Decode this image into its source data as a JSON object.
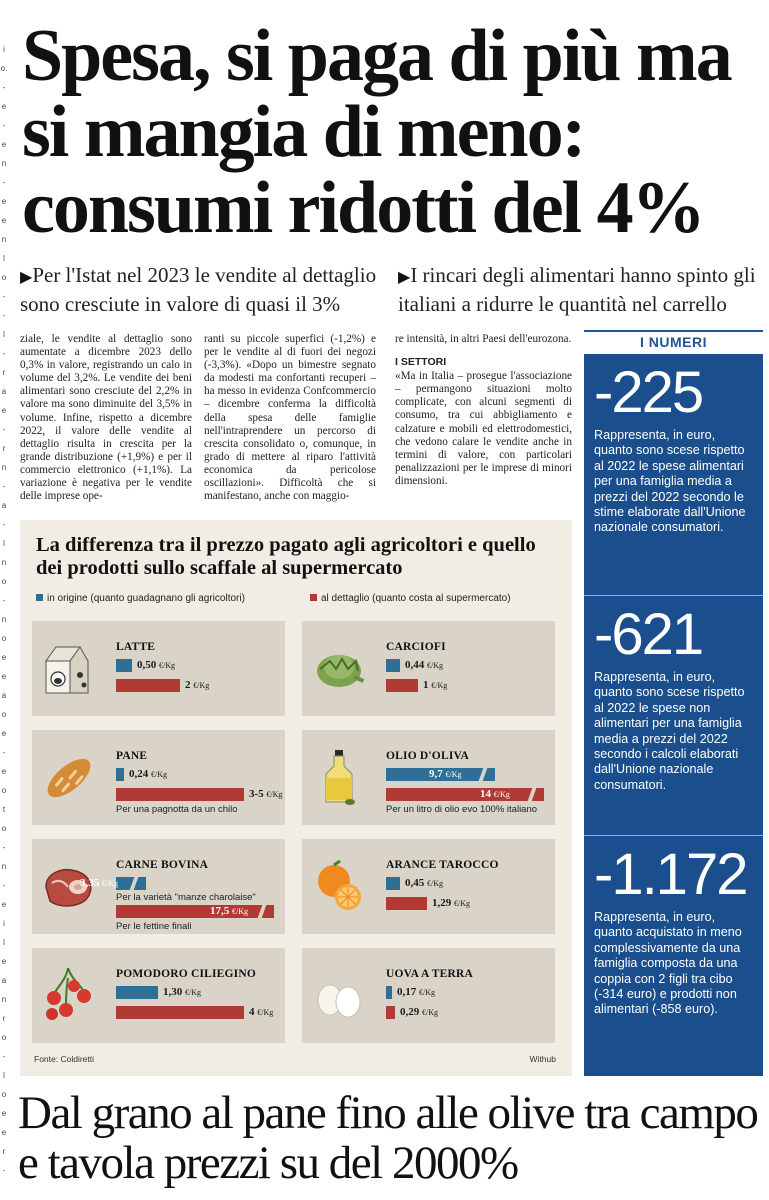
{
  "headline": "Spesa, si paga di più ma si mangia di meno: consumi ridotti del 4%",
  "decks": [
    {
      "arrow": "▶",
      "text": "Per l'Istat nel 2023 le vendite al dettaglio sono cresciute in valore di quasi il 3%"
    },
    {
      "arrow": "▶",
      "text": "I rincari degli alimentari hanno spinto gli italiani a ridurre le quantità nel carrello"
    }
  ],
  "body": {
    "col1": "ziale, le vendite al dettaglio sono aumentate a dicembre 2023 dello 0,3% in valore, registrando un calo in volume del 3,2%. Le vendite dei beni alimentari sono cresciute del 2,2% in valore ma sono diminuite del 3,5% in volume. Infine, rispetto a dicembre 2022, il valore delle vendite al dettaglio risulta in crescita per la grande distribuzione (+1,9%) e per il commercio elettronico (+1,1%). La variazione è negativa per le vendite delle imprese ope-",
    "col2": "ranti su piccole superfici (-1,2%) e per le vendite al di fuori dei negozi (-3,3%). «Dopo un bimestre segnato da modesti ma confortanti recuperi – ha messo in evidenza Confcommercio – dicembre conferma la difficoltà della spesa delle famiglie nell'intraprendere un percorso di crescita consolidato o, comunque, in grado di mettere al riparo l'attività economica da pericolose oscillazioni». Difficoltà che si manifestano, anche con maggio-",
    "col3_intro": "re intensità, in altri Paesi dell'eurozona.",
    "col3_heading": "I SETTORI",
    "col3_text": "«Ma in Italia – prosegue l'associazione – permangono situazioni molto complicate, con alcuni segmenti di consumo, tra cui abbigliamento e calzature e mobili ed elettrodomestici, che vedono calare le vendite anche in termini di valore, con particolari penalizzazioni per le imprese di minori dimensioni."
  },
  "sidebar": {
    "title": "I NUMERI",
    "items": [
      {
        "value": "-225",
        "text": "Rappresenta, in euro, quanto sono scese rispetto al 2022 le spese alimentari per una famiglia media a prezzi del 2022 secondo le stime elaborate dall'Unione nazionale consumatori."
      },
      {
        "value": "-621",
        "text": "Rappresenta, in euro, quanto sono scese rispetto al 2022 le spese non alimentari per una famiglia media a prezzi del 2022 secondo i calcoli elaborati dall'Unione nazionale consumatori."
      },
      {
        "value": "-1.172",
        "text": "Rappresenta, in euro, quanto acquistato in meno complessivamente da una famiglia composta da una coppia con 2 figli tra cibo (-314 euro) e prodotti non alimentari (-858 euro)."
      }
    ]
  },
  "infographic": {
    "title": "La differenza tra il prezzo pagato agli agricoltori e quello dei prodotti sullo scaffale al supermercato",
    "legend_origin": "in origine (quanto guadagnano gli agricoltori)",
    "legend_retail": "al dettaglio (quanto costa al supermercato)",
    "source": "Fonte: Coldiretti",
    "credit": "Withub",
    "colors": {
      "origin": "#2f6f95",
      "retail": "#b23a34",
      "panel": "#f1ece4",
      "card": "#d9d4c7",
      "sidebar": "#1b4e8c"
    }
  },
  "chart_data": {
    "type": "bar",
    "title": "La differenza tra il prezzo pagato agli agricoltori e quello dei prodotti sullo scaffale al supermercato",
    "unit": "€/Kg",
    "series_names": [
      "in origine (quanto guadagnano gli agricoltori)",
      "al dettaglio (quanto costa al supermercato)"
    ],
    "items": [
      {
        "name": "LATTE",
        "icon": "milk-carton-icon",
        "origin": 0.5,
        "origin_label": "0,50",
        "retail": 2,
        "retail_label": "2",
        "note_origin": "",
        "note_retail": ""
      },
      {
        "name": "CARCIOFI",
        "icon": "artichoke-icon",
        "origin": 0.44,
        "origin_label": "0,44",
        "retail": 1,
        "retail_label": "1",
        "note_origin": "",
        "note_retail": ""
      },
      {
        "name": "PANE",
        "icon": "bread-icon",
        "origin": 0.24,
        "origin_label": "0,24",
        "retail": 4,
        "retail_label": "3-5",
        "note_origin": "",
        "note_retail": "Per una pagnotta da un chilo"
      },
      {
        "name": "OLIO D'OLIVA",
        "icon": "olive-oil-bottle-icon",
        "origin": 9.7,
        "origin_label": "9,7",
        "retail": 14,
        "retail_label": "14",
        "note_origin": "",
        "note_retail": "Per un litro di olio evo 100% italiano",
        "broken": true
      },
      {
        "name": "CARNE BOVINA",
        "icon": "beef-icon",
        "origin": 3.35,
        "origin_label": "3,35",
        "retail": 17.5,
        "retail_label": "17,5",
        "note_origin": "Per la varietà \"manze charolaise\"",
        "note_retail": "Per le fettine finali",
        "broken": true
      },
      {
        "name": "ARANCE TAROCCO",
        "icon": "orange-icon",
        "origin": 0.45,
        "origin_label": "0,45",
        "retail": 1.29,
        "retail_label": "1,29",
        "note_origin": "",
        "note_retail": ""
      },
      {
        "name": "POMODORO CILIEGINO",
        "icon": "cherry-tomato-icon",
        "origin": 1.3,
        "origin_label": "1,30",
        "retail": 4,
        "retail_label": "4",
        "note_origin": "",
        "note_retail": ""
      },
      {
        "name": "UOVA A TERRA",
        "icon": "eggs-icon",
        "origin": 0.17,
        "origin_label": "0,17",
        "retail": 0.29,
        "retail_label": "0,29",
        "note_origin": "",
        "note_retail": ""
      }
    ]
  },
  "bottom_headline": "Dal grano al pane fino alle olive tra campo e tavola prezzi su del 2000%",
  "gutter": [
    "i",
    "o.",
    "-",
    "e",
    "-",
    "e",
    "n",
    "-",
    "e",
    "e",
    "n",
    "l",
    "o",
    "-",
    "-",
    "l",
    "-",
    "r",
    "a",
    "e",
    "-",
    "r",
    "n",
    "-",
    "a",
    "-",
    "l",
    "n",
    "o",
    "-",
    "n",
    "o",
    "e",
    "e",
    "a",
    "o",
    "e",
    "-",
    "e",
    "o",
    "t",
    "o",
    "-",
    "n",
    "-",
    "e",
    "i",
    "l",
    "e",
    "a",
    "n",
    "r",
    "o",
    "-",
    "l",
    "o",
    "e",
    "e",
    "r",
    "-"
  ]
}
